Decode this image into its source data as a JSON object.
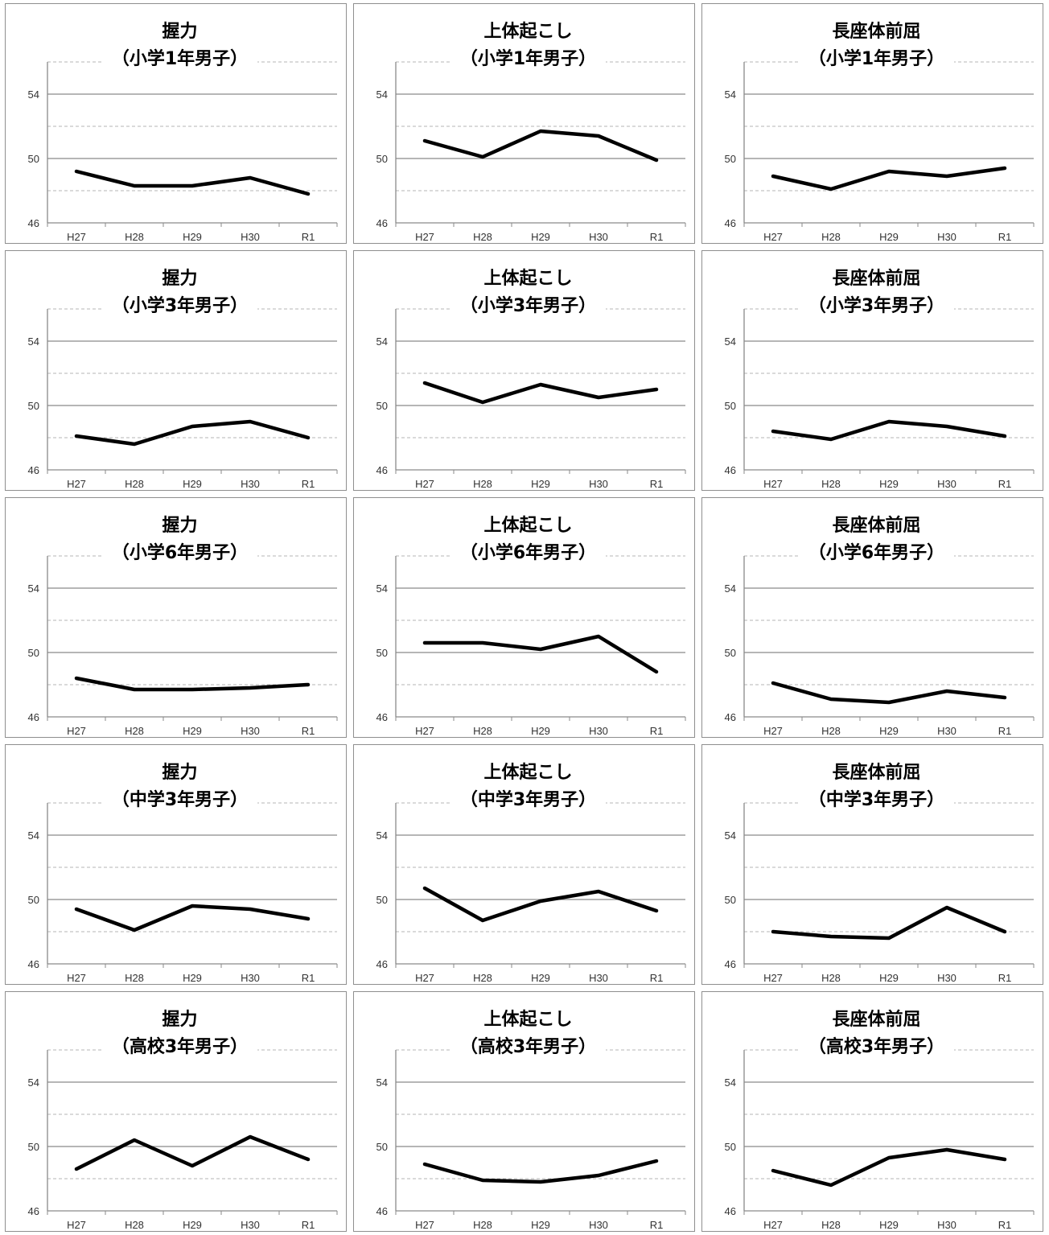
{
  "chart_data": [
    {
      "type": "line",
      "title": "握力",
      "subtitle": "（小学1年男子）",
      "categories": [
        "H27",
        "H28",
        "H29",
        "H30",
        "R1"
      ],
      "values": [
        49.2,
        48.3,
        48.3,
        48.8,
        47.8
      ],
      "ylim": [
        46,
        56
      ],
      "yticks": [
        46,
        50,
        54
      ]
    },
    {
      "type": "line",
      "title": "上体起こし",
      "subtitle": "（小学1年男子）",
      "categories": [
        "H27",
        "H28",
        "H29",
        "H30",
        "R1"
      ],
      "values": [
        51.1,
        50.1,
        51.7,
        51.4,
        49.9
      ],
      "ylim": [
        46,
        56
      ],
      "yticks": [
        46,
        50,
        54
      ]
    },
    {
      "type": "line",
      "title": "長座体前屈",
      "subtitle": "（小学1年男子）",
      "categories": [
        "H27",
        "H28",
        "H29",
        "H30",
        "R1"
      ],
      "values": [
        48.9,
        48.1,
        49.2,
        48.9,
        49.4
      ],
      "ylim": [
        46,
        56
      ],
      "yticks": [
        46,
        50,
        54
      ]
    },
    {
      "type": "line",
      "title": "握力",
      "subtitle": "（小学3年男子）",
      "categories": [
        "H27",
        "H28",
        "H29",
        "H30",
        "R1"
      ],
      "values": [
        48.1,
        47.6,
        48.7,
        49.0,
        48.0
      ],
      "ylim": [
        46,
        56
      ],
      "yticks": [
        46,
        50,
        54
      ]
    },
    {
      "type": "line",
      "title": "上体起こし",
      "subtitle": "（小学3年男子）",
      "categories": [
        "H27",
        "H28",
        "H29",
        "H30",
        "R1"
      ],
      "values": [
        51.4,
        50.2,
        51.3,
        50.5,
        51.0
      ],
      "ylim": [
        46,
        56
      ],
      "yticks": [
        46,
        50,
        54
      ]
    },
    {
      "type": "line",
      "title": "長座体前屈",
      "subtitle": "（小学3年男子）",
      "categories": [
        "H27",
        "H28",
        "H29",
        "H30",
        "R1"
      ],
      "values": [
        48.4,
        47.9,
        49.0,
        48.7,
        48.1
      ],
      "ylim": [
        46,
        56
      ],
      "yticks": [
        46,
        50,
        54
      ]
    },
    {
      "type": "line",
      "title": "握力",
      "subtitle": "（小学6年男子）",
      "categories": [
        "H27",
        "H28",
        "H29",
        "H30",
        "R1"
      ],
      "values": [
        48.4,
        47.7,
        47.7,
        47.8,
        48.0
      ],
      "ylim": [
        46,
        56
      ],
      "yticks": [
        46,
        50,
        54
      ]
    },
    {
      "type": "line",
      "title": "上体起こし",
      "subtitle": "（小学6年男子）",
      "categories": [
        "H27",
        "H28",
        "H29",
        "H30",
        "R1"
      ],
      "values": [
        50.6,
        50.6,
        50.2,
        51.0,
        48.8
      ],
      "ylim": [
        46,
        56
      ],
      "yticks": [
        46,
        50,
        54
      ]
    },
    {
      "type": "line",
      "title": "長座体前屈",
      "subtitle": "（小学6年男子）",
      "categories": [
        "H27",
        "H28",
        "H29",
        "H30",
        "R1"
      ],
      "values": [
        48.1,
        47.1,
        46.9,
        47.6,
        47.2
      ],
      "ylim": [
        46,
        56
      ],
      "yticks": [
        46,
        50,
        54
      ]
    },
    {
      "type": "line",
      "title": "握力",
      "subtitle": "（中学3年男子）",
      "categories": [
        "H27",
        "H28",
        "H29",
        "H30",
        "R1"
      ],
      "values": [
        49.4,
        48.1,
        49.6,
        49.4,
        48.8
      ],
      "ylim": [
        46,
        56
      ],
      "yticks": [
        46,
        50,
        54
      ]
    },
    {
      "type": "line",
      "title": "上体起こし",
      "subtitle": "（中学3年男子）",
      "categories": [
        "H27",
        "H28",
        "H29",
        "H30",
        "R1"
      ],
      "values": [
        50.7,
        48.7,
        49.9,
        50.5,
        49.3
      ],
      "ylim": [
        46,
        56
      ],
      "yticks": [
        46,
        50,
        54
      ]
    },
    {
      "type": "line",
      "title": "長座体前屈",
      "subtitle": "（中学3年男子）",
      "categories": [
        "H27",
        "H28",
        "H29",
        "H30",
        "R1"
      ],
      "values": [
        48.0,
        47.7,
        47.6,
        49.5,
        48.0
      ],
      "ylim": [
        46,
        56
      ],
      "yticks": [
        46,
        50,
        54
      ]
    },
    {
      "type": "line",
      "title": "握力",
      "subtitle": "（高校3年男子）",
      "categories": [
        "H27",
        "H28",
        "H29",
        "H30",
        "R1"
      ],
      "values": [
        48.6,
        50.4,
        48.8,
        50.6,
        49.2
      ],
      "ylim": [
        46,
        56
      ],
      "yticks": [
        46,
        50,
        54
      ]
    },
    {
      "type": "line",
      "title": "上体起こし",
      "subtitle": "（高校3年男子）",
      "categories": [
        "H27",
        "H28",
        "H29",
        "H30",
        "R1"
      ],
      "values": [
        48.9,
        47.9,
        47.8,
        48.2,
        49.1
      ],
      "ylim": [
        46,
        56
      ],
      "yticks": [
        46,
        50,
        54
      ]
    },
    {
      "type": "line",
      "title": "長座体前屈",
      "subtitle": "（高校3年男子）",
      "categories": [
        "H27",
        "H28",
        "H29",
        "H30",
        "R1"
      ],
      "values": [
        48.5,
        47.6,
        49.3,
        49.8,
        49.2
      ],
      "ylim": [
        46,
        56
      ],
      "yticks": [
        46,
        50,
        54
      ]
    }
  ]
}
